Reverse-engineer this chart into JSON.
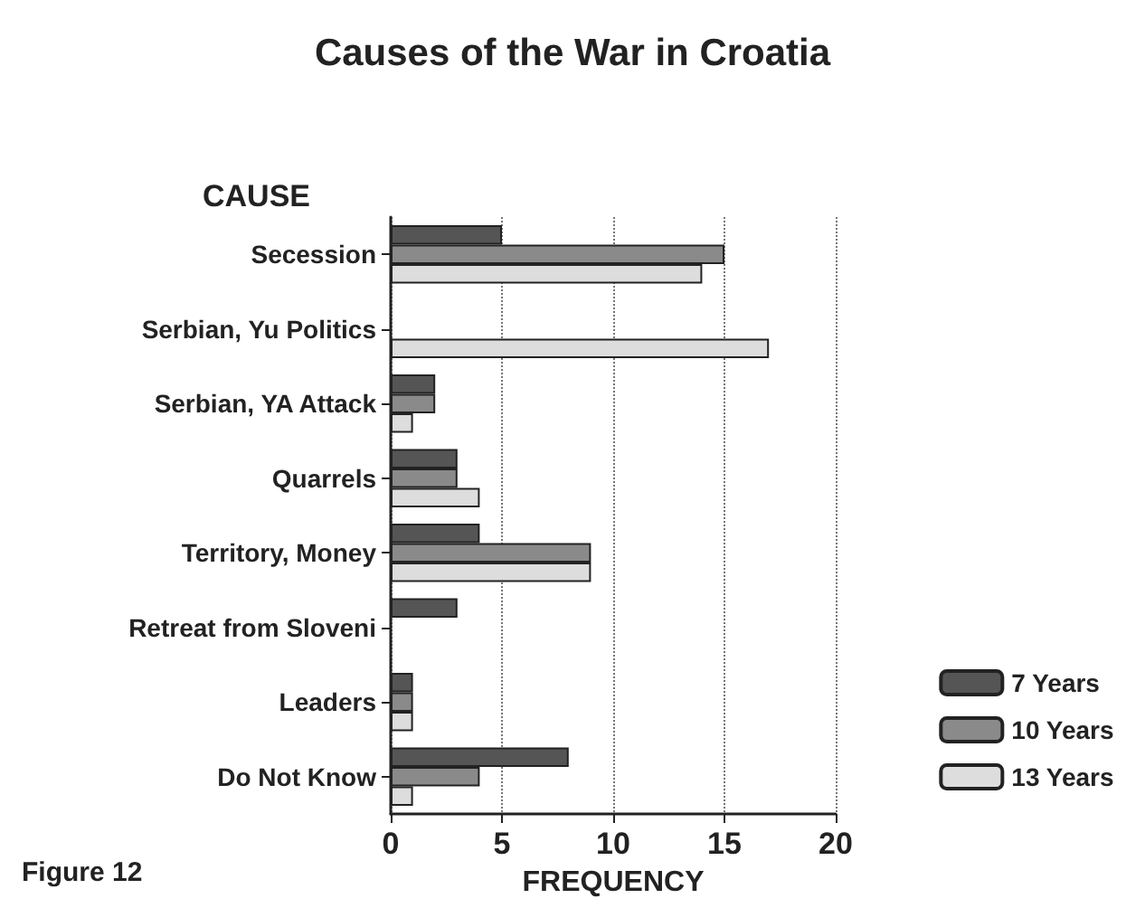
{
  "chart_data": {
    "type": "bar",
    "orientation": "horizontal",
    "title": "Causes of the War in Croatia",
    "ylabel": "CAUSE",
    "xlabel": "FREQUENCY",
    "categories": [
      "Secession",
      "Serbian, Yu Politics",
      "Serbian, YA Attack",
      "Quarrels",
      "Territory, Money",
      "Retreat from Sloveni",
      "Leaders",
      "Do Not Know"
    ],
    "series": [
      {
        "name": "7 Years",
        "color": "#555555",
        "values": [
          5,
          0,
          2,
          3,
          4,
          3,
          1,
          8
        ]
      },
      {
        "name": "10 Years",
        "color": "#8a8a8a",
        "values": [
          15,
          0,
          2,
          3,
          9,
          0,
          1,
          4
        ]
      },
      {
        "name": "13 Years",
        "color": "#dddddd",
        "values": [
          14,
          17,
          1,
          4,
          9,
          0,
          1,
          1
        ]
      }
    ],
    "xlim": [
      0,
      20
    ],
    "xticks": [
      0,
      5,
      10,
      15,
      20
    ],
    "grid": "x",
    "legend": "right",
    "annotations": [
      "Figure 12"
    ]
  }
}
